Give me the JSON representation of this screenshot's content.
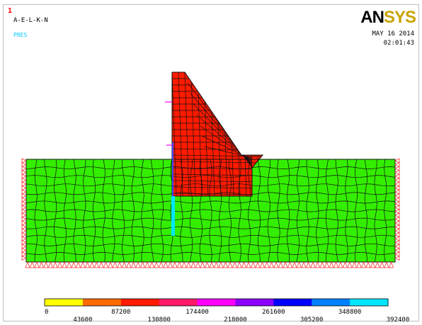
{
  "window": {
    "number": "1"
  },
  "plot": {
    "title": "A-E-L-K-N",
    "load_label": "PRES",
    "date": "MAY 16 2014",
    "time": "02:01:43"
  },
  "logo": {
    "part1": "AN",
    "part2": "SYS"
  },
  "colors": {
    "foundation": "#33ee00",
    "dam": "#ff1a00",
    "mesh_line": "#111111",
    "constraint": "#ff3030",
    "pressure": "#00e6ff",
    "pressure_marker": "#ff00ff"
  },
  "legend": {
    "values_top": [
      "0",
      "87200",
      "174400",
      "261600",
      "348800"
    ],
    "values_bottom": [
      "43600",
      "130800",
      "218000",
      "305200",
      "392400"
    ],
    "colors": [
      "#ffff00",
      "#ff6a00",
      "#ff1a00",
      "#ff1a6a",
      "#ff00ff",
      "#8c00ff",
      "#0000ff",
      "#0080ff",
      "#00e6ff"
    ]
  }
}
